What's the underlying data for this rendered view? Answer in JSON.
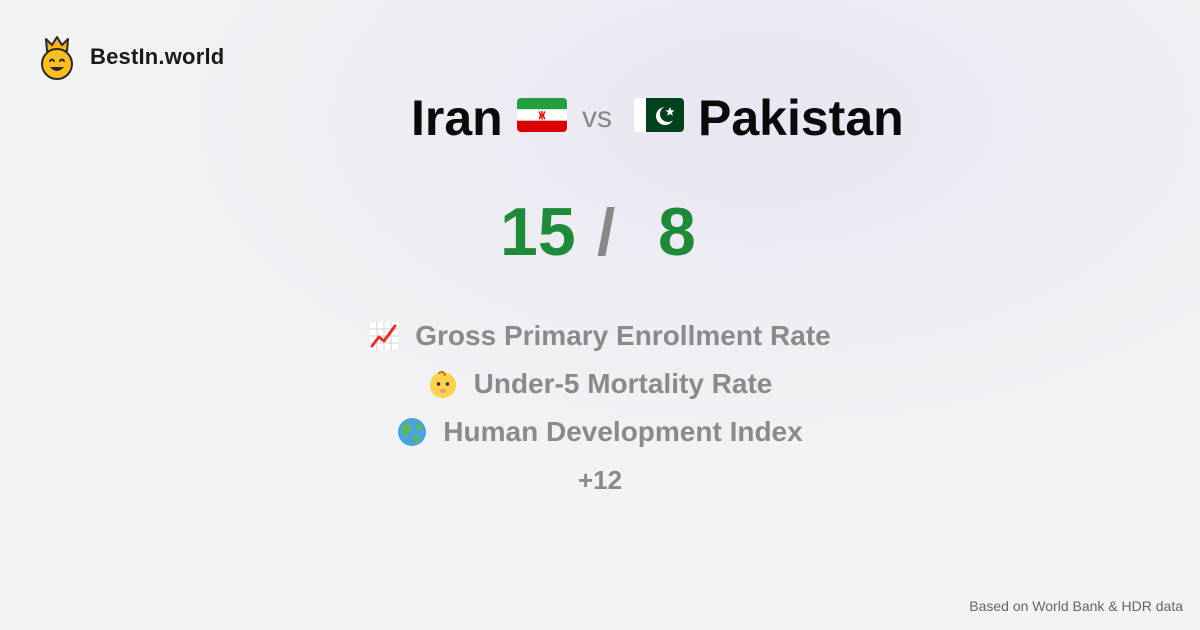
{
  "brand": {
    "name": "BestIn.world",
    "logo_icon": "crown-smiley-icon"
  },
  "comparison": {
    "left_country": "Iran",
    "left_flag_icon": "iran-flag-icon",
    "vs_label": "vs",
    "right_country": "Pakistan",
    "right_flag_icon": "pakistan-flag-icon"
  },
  "score": {
    "left": "15",
    "separator": "/",
    "right": "8",
    "color": "#1f8a3a"
  },
  "metrics": [
    {
      "icon": "chart-increasing-icon",
      "label": "Gross Primary Enrollment Rate"
    },
    {
      "icon": "baby-icon",
      "label": "Under-5 Mortality Rate"
    },
    {
      "icon": "globe-icon",
      "label": "Human Development Index"
    }
  ],
  "more_label": "+12",
  "footer": {
    "source_text": "Based on World Bank & HDR data"
  }
}
